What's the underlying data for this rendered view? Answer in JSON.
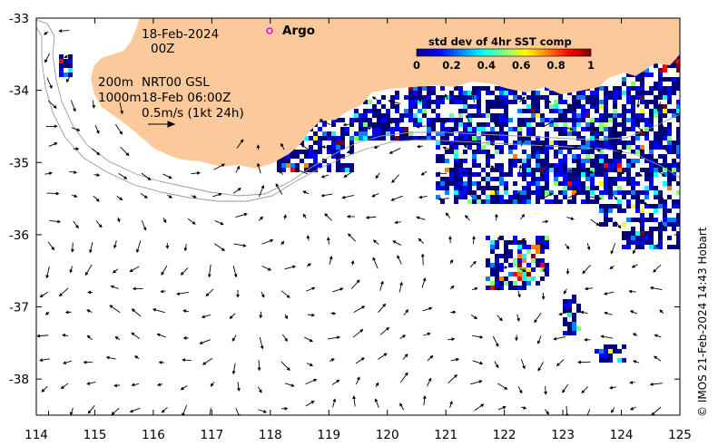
{
  "map": {
    "lon_range": [
      114,
      125
    ],
    "lat_range": [
      -38.5,
      -33
    ],
    "lon_ticks": [
      "114",
      "115",
      "116",
      "117",
      "118",
      "119",
      "120",
      "121",
      "122",
      "123",
      "124",
      "125"
    ],
    "lat_ticks": [
      "-33",
      "-34",
      "-35",
      "-36",
      "-37",
      "-38"
    ],
    "land_color": "#fbc99a",
    "frame_color": "#000000"
  },
  "annotations": {
    "date_line1": "18-Feb-2024",
    "date_line2": "00Z",
    "depth_200": "200m",
    "depth_1000": "1000m",
    "product": "NRT00 GSL",
    "product_time": "18-Feb 06:00Z",
    "scale_label": "0.5m/s (1kt 24h)"
  },
  "legend": {
    "argo_label": "Argo",
    "argo_color": "#ff00ff",
    "colorbar_title": "std dev of 4hr SST comp",
    "colorbar_ticks": [
      "0",
      "0.2",
      "0.4",
      "0.6",
      "0.8",
      "1"
    ],
    "colormap": [
      "#00007f",
      "#0000ff",
      "#007fff",
      "#00ffff",
      "#7fff7f",
      "#ffff00",
      "#ff7f00",
      "#ff0000",
      "#7f0000"
    ]
  },
  "credit": "© IMOS 21-Feb-2024 14:43 Hobart"
}
